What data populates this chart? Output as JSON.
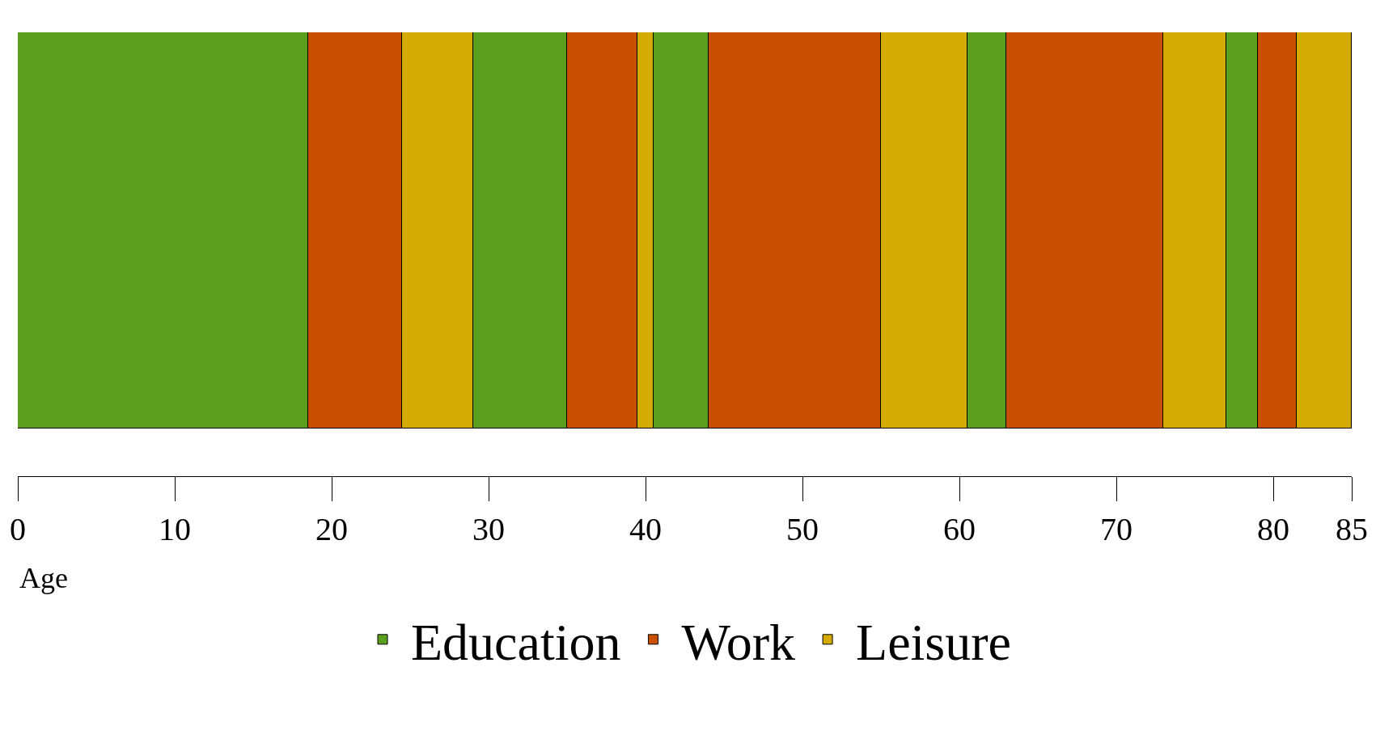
{
  "chart_data": {
    "type": "bar",
    "orientation": "horizontal",
    "stacked": true,
    "xlabel": "Age",
    "categories": [
      null
    ],
    "xlim": [
      0,
      85
    ],
    "xticks": [
      0,
      10,
      20,
      30,
      40,
      50,
      60,
      70,
      80,
      85
    ],
    "legend": "bottom",
    "grid": false,
    "series": [
      {
        "name": "Education",
        "color": "#5aa01e",
        "values": [
          18.5
        ]
      },
      {
        "name": "Work",
        "color": "#c85000",
        "values": [
          6
        ]
      },
      {
        "name": "Leisure",
        "color": "#d4aa00",
        "values": [
          4.5
        ]
      },
      {
        "color": "#5aa01e",
        "values": [
          6
        ]
      },
      {
        "color": "#c85000",
        "values": [
          4.5
        ]
      },
      {
        "color": "#d4aa00",
        "values": [
          1
        ]
      },
      {
        "color": "#5aa01e",
        "values": [
          3.5
        ]
      },
      {
        "color": "#c85000",
        "values": [
          11
        ]
      },
      {
        "color": "#d4aa00",
        "values": [
          5.5
        ]
      },
      {
        "color": "#5aa01e",
        "values": [
          2.5
        ]
      },
      {
        "color": "#c85000",
        "values": [
          10
        ]
      },
      {
        "color": "#d4aa00",
        "values": [
          4
        ]
      },
      {
        "color": "#5aa01e",
        "values": [
          2
        ]
      },
      {
        "color": "#c85000",
        "values": [
          2.5
        ]
      },
      {
        "color": "#d4aa00",
        "values": [
          3.5
        ]
      }
    ]
  }
}
